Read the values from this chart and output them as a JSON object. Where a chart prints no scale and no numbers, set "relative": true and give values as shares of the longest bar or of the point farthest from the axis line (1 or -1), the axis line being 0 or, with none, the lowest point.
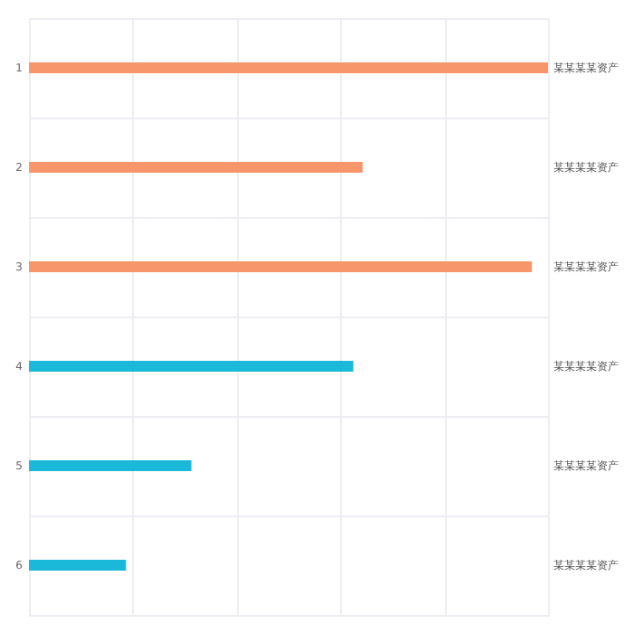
{
  "chart_data": {
    "type": "bar",
    "orientation": "horizontal",
    "relative": true,
    "grid": true,
    "categories": [
      "1",
      "2",
      "3",
      "4",
      "5",
      "6"
    ],
    "y2_categories": [
      "某某某某资产",
      "某某某某资产",
      "某某某某资产",
      "某某某某资产",
      "某某某某资产",
      "某某某某资产"
    ],
    "values": [
      1,
      0.643,
      0.969,
      0.625,
      0.313,
      0.187
    ],
    "colors": [
      "#f7966a",
      "#f7966a",
      "#f7966a",
      "#1ab8d9",
      "#1ab8d9",
      "#1ab8d9"
    ]
  }
}
